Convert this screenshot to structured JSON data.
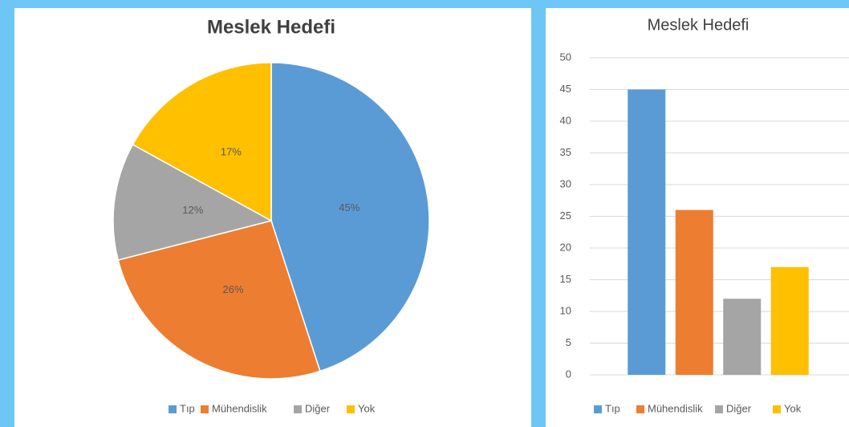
{
  "chart_data": [
    {
      "type": "pie",
      "title": "Meslek Hedefi",
      "categories": [
        "Tıp",
        "Mühendislik",
        "Diğer",
        "Yok"
      ],
      "values": [
        45,
        26,
        12,
        17
      ],
      "value_labels": [
        "45%",
        "26%",
        "12%",
        "17%"
      ],
      "colors": [
        "#5b9bd5",
        "#ed7d31",
        "#a5a5a5",
        "#ffc000"
      ],
      "legend": "bottom"
    },
    {
      "type": "bar",
      "title": "Meslek Hedefi",
      "categories": [
        "Tıp",
        "Mühendislik",
        "Diğer",
        "Yok"
      ],
      "values": [
        45,
        26,
        12,
        17
      ],
      "colors": [
        "#5b9bd5",
        "#ed7d31",
        "#a5a5a5",
        "#ffc000"
      ],
      "ylim": [
        0,
        50
      ],
      "yticks": [
        0,
        5,
        10,
        15,
        20,
        25,
        30,
        35,
        40,
        45,
        50
      ],
      "grid": true,
      "legend": "bottom"
    }
  ]
}
